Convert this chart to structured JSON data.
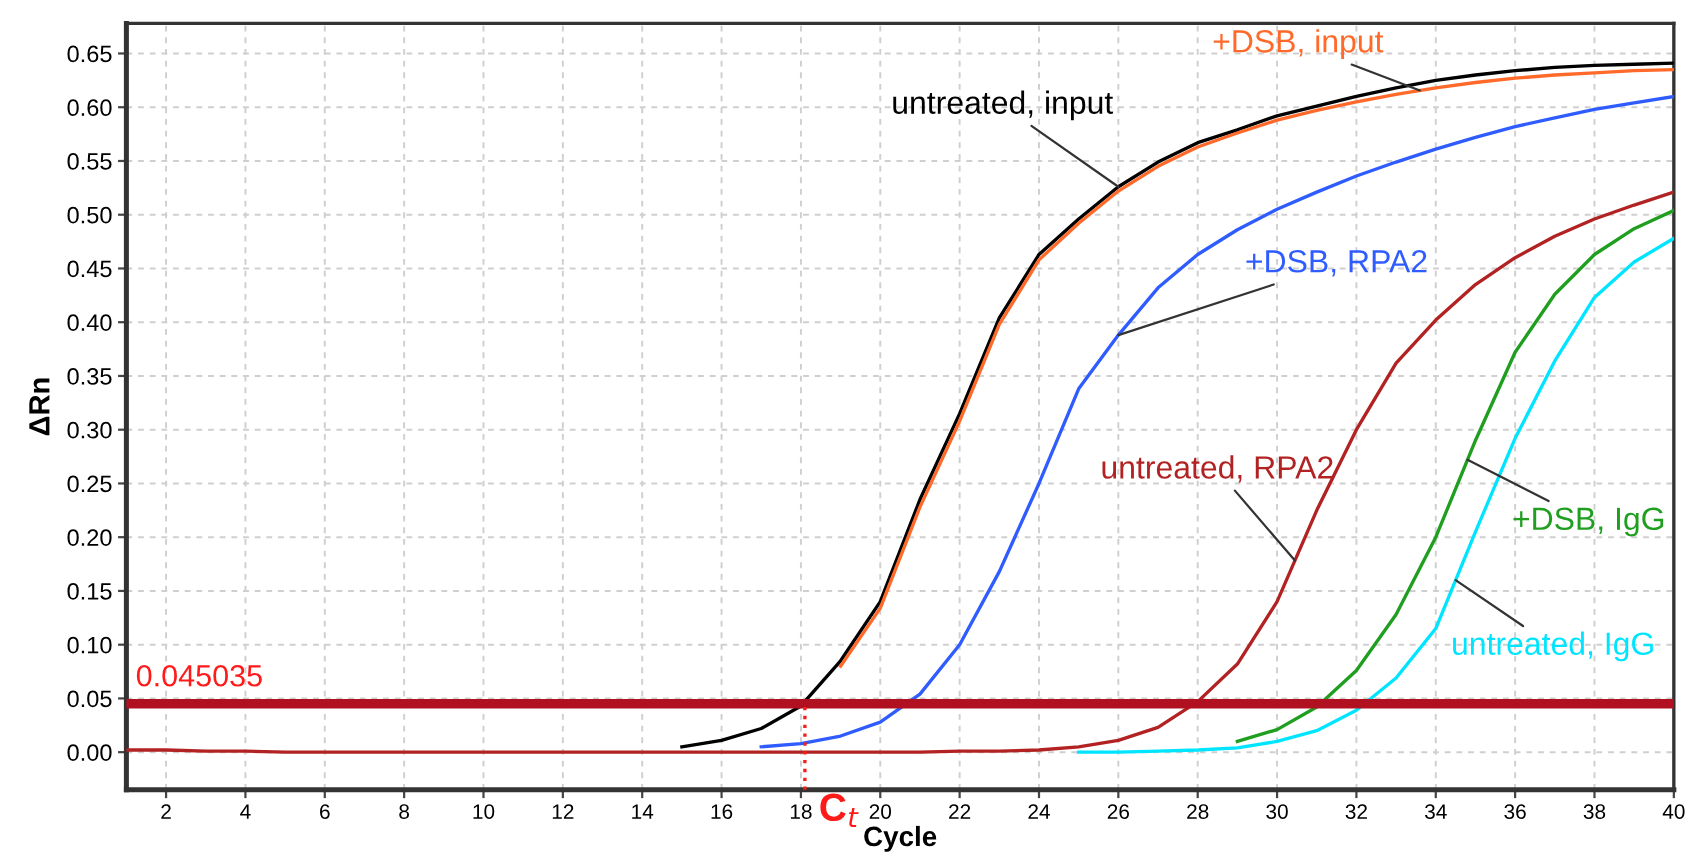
{
  "chart_data": {
    "type": "line",
    "xlabel": "Cycle",
    "ylabel": "ΔRn",
    "x": [
      1,
      2,
      3,
      4,
      5,
      6,
      7,
      8,
      9,
      10,
      11,
      12,
      13,
      14,
      15,
      16,
      17,
      18,
      19,
      20,
      21,
      22,
      23,
      24,
      25,
      26,
      27,
      28,
      29,
      30,
      31,
      32,
      33,
      34,
      35,
      36,
      37,
      38,
      39,
      40
    ],
    "series": [
      {
        "name": "untreated, input",
        "color": "#000000",
        "values": [
          null,
          null,
          null,
          null,
          null,
          null,
          null,
          null,
          null,
          null,
          null,
          null,
          null,
          null,
          0.005,
          0.011,
          0.022,
          0.043,
          0.085,
          0.14,
          0.235,
          0.315,
          0.404,
          0.463,
          0.496,
          0.526,
          0.549,
          0.567,
          0.579,
          0.592,
          0.601,
          0.61,
          0.618,
          0.625,
          0.63,
          0.634,
          0.637,
          0.639,
          0.64,
          0.641
        ]
      },
      {
        "name": "+DSB, input",
        "color": "#ff6a2a",
        "values": [
          null,
          null,
          null,
          null,
          null,
          null,
          null,
          null,
          null,
          null,
          null,
          null,
          null,
          null,
          null,
          null,
          null,
          null,
          0.08,
          0.134,
          0.228,
          0.308,
          0.398,
          0.458,
          0.492,
          0.522,
          0.545,
          0.563,
          0.576,
          0.588,
          0.597,
          0.605,
          0.612,
          0.618,
          0.623,
          0.627,
          0.63,
          0.632,
          0.634,
          0.635
        ]
      },
      {
        "name": "+DSB, RPA2",
        "color": "#2f5cff",
        "values": [
          null,
          null,
          null,
          null,
          null,
          null,
          null,
          null,
          null,
          null,
          null,
          null,
          null,
          null,
          null,
          null,
          0.005,
          0.008,
          0.015,
          0.028,
          0.054,
          0.1,
          0.168,
          0.25,
          0.338,
          0.388,
          0.432,
          0.463,
          0.486,
          0.505,
          0.521,
          0.536,
          0.549,
          0.561,
          0.572,
          0.582,
          0.59,
          0.598,
          0.604,
          0.61
        ]
      },
      {
        "name": "untreated, RPA2",
        "color": "#b22222",
        "values": [
          0.002,
          0.002,
          0.001,
          0.001,
          0.0,
          0.0,
          0.0,
          0.0,
          0.0,
          0.0,
          0.0,
          0.0,
          0.0,
          0.0,
          0.0,
          0.0,
          0.0,
          0.0,
          0.0,
          0.0,
          0.0,
          0.001,
          0.001,
          0.002,
          0.005,
          0.011,
          0.023,
          0.047,
          0.082,
          0.14,
          0.225,
          0.3,
          0.362,
          0.402,
          0.435,
          0.46,
          0.48,
          0.496,
          0.509,
          0.521
        ]
      },
      {
        "name": "+DSB, IgG",
        "color": "#1f9e1f",
        "values": [
          null,
          null,
          null,
          null,
          null,
          null,
          null,
          null,
          null,
          null,
          null,
          null,
          null,
          null,
          null,
          null,
          null,
          null,
          null,
          null,
          null,
          null,
          null,
          null,
          null,
          null,
          null,
          null,
          0.01,
          0.021,
          0.042,
          0.076,
          0.128,
          0.2,
          0.29,
          0.372,
          0.426,
          0.463,
          0.487,
          0.504
        ]
      },
      {
        "name": "untreated, IgG",
        "color": "#00e5ff",
        "values": [
          null,
          null,
          null,
          null,
          null,
          null,
          null,
          null,
          null,
          null,
          null,
          null,
          null,
          null,
          null,
          null,
          null,
          null,
          null,
          null,
          null,
          null,
          null,
          null,
          0.0,
          0.0,
          0.001,
          0.002,
          0.004,
          0.01,
          0.02,
          0.039,
          0.069,
          0.115,
          0.205,
          0.292,
          0.364,
          0.423,
          0.456,
          0.478
        ]
      }
    ],
    "xlim": [
      1,
      40
    ],
    "ylim": [
      -0.035,
      0.678
    ],
    "xticks": [
      2,
      4,
      6,
      8,
      10,
      12,
      14,
      16,
      18,
      20,
      22,
      24,
      26,
      28,
      30,
      32,
      34,
      36,
      38,
      40
    ],
    "yticks": [
      {
        "value": 0,
        "label": "0.00"
      },
      {
        "value": 0.05,
        "label": "0.05"
      },
      {
        "value": 0.1,
        "label": "0.10"
      },
      {
        "value": 0.15,
        "label": "0.15"
      },
      {
        "value": 0.2,
        "label": "0.20"
      },
      {
        "value": 0.25,
        "label": "0.25"
      },
      {
        "value": 0.3,
        "label": "0.30"
      },
      {
        "value": 0.35,
        "label": "0.35"
      },
      {
        "value": 0.4,
        "label": "0.40"
      },
      {
        "value": 0.45,
        "label": "0.45"
      },
      {
        "value": 0.5,
        "label": "0.50"
      },
      {
        "value": 0.55,
        "label": "0.55"
      },
      {
        "value": 0.6,
        "label": "0.60"
      },
      {
        "value": 0.65,
        "label": "0.65"
      }
    ],
    "grid": true,
    "ref_lines": [
      {
        "axis": "y",
        "value": 0.045035,
        "label": "0.045035",
        "color": "#b01020"
      }
    ],
    "annotations": [
      {
        "text": "C$_{t}$",
        "x": 18.1,
        "y": 0.045035
      }
    ]
  }
}
